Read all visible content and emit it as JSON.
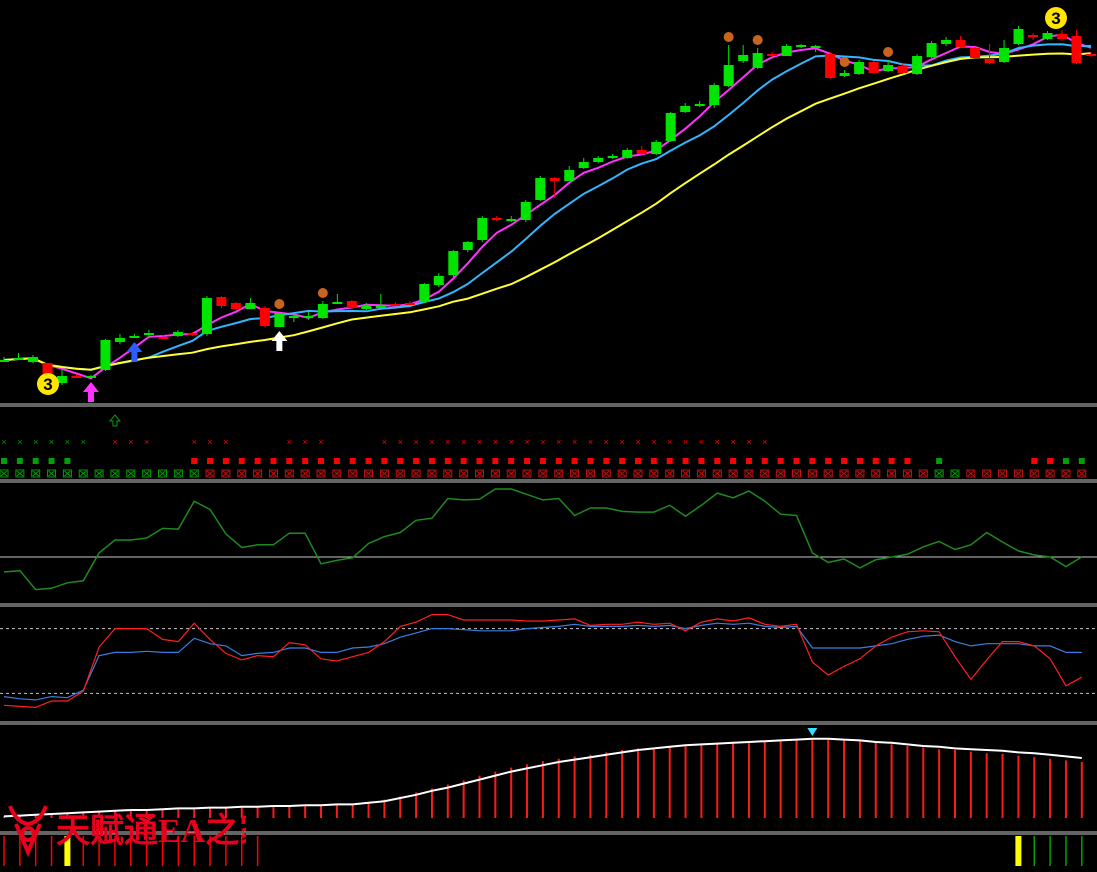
{
  "colors": {
    "background": "#000000",
    "separator": "#c8c8c8",
    "bull": "#00e400",
    "bear": "#ff0000",
    "ma_fast": "#ff33ff",
    "ma_mid": "#33b5ff",
    "ma_slow": "#ffff33",
    "osc1": "#1f8a1f",
    "osc2_a": "#ff2020",
    "osc2_b": "#3a7fe0",
    "hist": "#ff1a1a",
    "hist_line": "#ffffff",
    "signal_yellow": "#ffff00",
    "signal_green": "#00a000"
  },
  "watermark": {
    "text": "天赋通EA之家",
    "icon": "bull-head-icon"
  },
  "badges": [
    {
      "label": "3",
      "at": 3
    },
    {
      "label": "3",
      "at": 65
    }
  ],
  "chart_data": [
    {
      "type": "candlestick",
      "panel": "main",
      "title": "",
      "candles": [
        [
          362,
          360,
          357,
          362
        ],
        [
          359,
          358,
          353,
          360
        ],
        [
          362,
          357,
          355,
          363
        ],
        [
          363,
          384,
          364,
          384
        ],
        [
          383,
          376,
          370,
          385
        ],
        [
          376,
          377,
          374,
          378
        ],
        [
          377,
          376,
          375,
          378
        ],
        [
          370,
          340,
          339,
          371
        ],
        [
          342,
          338,
          334,
          344
        ],
        [
          337,
          336,
          334,
          338
        ],
        [
          335,
          333,
          330,
          337
        ],
        [
          337,
          337,
          335,
          338
        ],
        [
          336,
          332,
          330,
          337
        ],
        [
          333,
          334,
          332,
          336
        ],
        [
          334,
          298,
          296,
          336
        ],
        [
          297,
          306,
          296,
          308
        ],
        [
          303,
          309,
          302,
          310
        ],
        [
          309,
          303,
          298,
          309
        ],
        [
          308,
          326,
          306,
          327
        ],
        [
          327,
          313,
          312,
          327
        ],
        [
          318,
          316,
          314,
          322
        ],
        [
          317,
          316,
          312,
          320
        ],
        [
          318,
          304,
          301,
          319
        ],
        [
          303,
          302,
          294,
          304
        ],
        [
          301,
          308,
          300,
          309
        ],
        [
          309,
          305,
          303,
          310
        ],
        [
          307,
          306,
          294,
          307
        ],
        [
          304,
          304,
          302,
          306
        ],
        [
          303,
          303,
          301,
          305
        ],
        [
          302,
          284,
          283,
          303
        ],
        [
          285,
          276,
          273,
          287
        ],
        [
          275,
          251,
          250,
          277
        ],
        [
          250,
          242,
          241,
          252
        ],
        [
          240,
          218,
          216,
          242
        ],
        [
          218,
          220,
          216,
          221
        ],
        [
          221,
          219,
          216,
          222
        ],
        [
          220,
          202,
          200,
          222
        ],
        [
          200,
          178,
          176,
          201
        ],
        [
          178,
          181,
          177,
          198
        ],
        [
          181,
          170,
          166,
          181
        ],
        [
          168,
          162,
          158,
          169
        ],
        [
          162,
          158,
          156,
          163
        ],
        [
          158,
          156,
          154,
          159
        ],
        [
          158,
          150,
          148,
          159
        ],
        [
          150,
          154,
          146,
          155
        ],
        [
          154,
          142,
          140,
          155
        ],
        [
          141,
          113,
          112,
          142
        ],
        [
          112,
          106,
          103,
          113
        ],
        [
          106,
          104,
          101,
          107
        ],
        [
          105,
          85,
          83,
          108
        ],
        [
          86,
          65,
          45,
          87
        ],
        [
          61,
          55,
          45,
          63
        ],
        [
          68,
          53,
          48,
          69
        ],
        [
          54,
          56,
          52,
          57
        ],
        [
          56,
          46,
          44,
          56
        ],
        [
          47,
          45,
          44,
          48
        ],
        [
          48,
          46,
          45,
          52
        ],
        [
          54,
          78,
          52,
          79
        ],
        [
          76,
          73,
          70,
          77
        ],
        [
          74,
          62,
          60,
          75
        ],
        [
          62,
          73,
          61,
          74
        ],
        [
          71,
          65,
          60,
          72
        ],
        [
          66,
          73,
          64,
          74
        ],
        [
          74,
          56,
          54,
          75
        ],
        [
          57,
          43,
          41,
          58
        ],
        [
          44,
          40,
          37,
          46
        ],
        [
          40,
          47,
          36,
          48
        ],
        [
          48,
          58,
          47,
          59
        ],
        [
          59,
          63,
          44,
          64
        ],
        [
          62,
          48,
          40,
          63
        ],
        [
          44,
          29,
          26,
          45
        ],
        [
          35,
          37,
          33,
          40
        ],
        [
          39,
          33,
          31,
          40
        ],
        [
          34,
          39,
          30,
          41
        ],
        [
          36,
          63,
          30,
          64
        ],
        [
          54,
          56,
          52,
          57
        ]
      ],
      "signals": [
        {
          "type": "up-arrow",
          "color": "magenta",
          "at": 6
        },
        {
          "type": "up-arrow",
          "color": "blue",
          "at": 9
        },
        {
          "type": "up-arrow",
          "color": "white",
          "at": 19
        },
        {
          "type": "marker",
          "at": 19
        },
        {
          "type": "marker",
          "at": 22
        },
        {
          "type": "marker",
          "at": 50
        },
        {
          "type": "marker",
          "at": 52
        },
        {
          "type": "marker",
          "at": 58
        },
        {
          "type": "marker",
          "at": 61
        }
      ]
    },
    {
      "type": "signal-rows",
      "panel": "signals",
      "title": "",
      "top_arrow_at": 7,
      "row1_green": [
        0,
        1,
        2,
        3,
        4,
        5
      ],
      "row1_red": [
        7,
        8,
        9,
        12,
        13,
        14,
        18,
        19,
        20,
        24,
        25,
        26,
        27,
        28,
        29,
        30,
        31,
        32,
        33,
        34,
        35,
        36,
        37,
        38,
        39,
        40,
        41,
        42,
        43,
        44,
        45,
        46,
        47,
        48
      ],
      "row2_green": [
        0,
        1,
        2,
        3,
        4,
        59,
        67,
        68
      ],
      "row2_red": [
        12,
        13,
        14,
        15,
        16,
        17,
        18,
        19,
        20,
        21,
        22,
        23,
        24,
        25,
        26,
        27,
        28,
        29,
        30,
        31,
        32,
        33,
        34,
        35,
        36,
        37,
        38,
        39,
        40,
        41,
        42,
        43,
        44,
        45,
        46,
        47,
        48,
        49,
        50,
        51,
        52,
        53,
        54,
        55,
        56,
        57,
        65,
        66
      ],
      "row3_green_until": 12
    },
    {
      "type": "line",
      "panel": "osc1",
      "title": "",
      "ylim": [
        -1,
        1
      ],
      "level": 0,
      "series": [
        {
          "values": [
            -0.22,
            -0.2,
            -0.48,
            -0.46,
            -0.38,
            -0.35,
            0.06,
            0.25,
            0.25,
            0.28,
            0.42,
            0.41,
            0.82,
            0.7,
            0.34,
            0.14,
            0.18,
            0.18,
            0.35,
            0.35,
            -0.1,
            -0.05,
            -0.01,
            0.2,
            0.3,
            0.36,
            0.54,
            0.57,
            0.86,
            0.84,
            0.85,
            1.0,
            1.0,
            0.92,
            0.84,
            0.86,
            0.61,
            0.72,
            0.72,
            0.67,
            0.66,
            0.66,
            0.76,
            0.6,
            0.76,
            0.94,
            0.87,
            0.97,
            0.82,
            0.63,
            0.61,
            0.06,
            -0.08,
            -0.03,
            -0.16,
            -0.04,
            0.0,
            0.04,
            0.15,
            0.23,
            0.11,
            0.18,
            0.36,
            0.22,
            0.09,
            0.03,
            0.0,
            -0.14,
            0.0
          ]
        }
      ]
    },
    {
      "type": "line",
      "panel": "osc2",
      "title": "",
      "ylim": [
        0,
        100
      ],
      "levels": [
        20,
        80
      ],
      "series": [
        {
          "values": [
            9,
            8,
            7,
            13,
            13,
            22,
            63,
            80,
            80,
            80,
            70,
            68,
            85,
            70,
            57,
            51,
            55,
            54,
            67,
            65,
            52,
            50,
            54,
            58,
            68,
            82,
            86,
            93,
            93,
            88,
            88,
            88,
            88,
            87,
            87,
            88,
            89,
            83,
            84,
            84,
            86,
            84,
            85,
            78,
            86,
            89,
            87,
            90,
            84,
            82,
            84,
            49,
            37,
            45,
            52,
            64,
            72,
            77,
            78,
            77,
            54,
            33,
            51,
            68,
            68,
            64,
            52,
            27,
            35
          ]
        },
        {
          "values": [
            17,
            15,
            14,
            17,
            16,
            23,
            55,
            58,
            58,
            59,
            58,
            58,
            71,
            66,
            64,
            55,
            57,
            58,
            62,
            62,
            58,
            58,
            62,
            63,
            66,
            72,
            76,
            80,
            80,
            79,
            78,
            78,
            78,
            80,
            81,
            82,
            84,
            82,
            82,
            82,
            83,
            82,
            83,
            80,
            83,
            85,
            84,
            85,
            82,
            81,
            82,
            62,
            62,
            62,
            62,
            64,
            66,
            70,
            73,
            74,
            68,
            64,
            66,
            66,
            66,
            64,
            64,
            58,
            58
          ]
        }
      ]
    },
    {
      "type": "bar",
      "panel": "macd",
      "title": "",
      "ylim": [
        0,
        100
      ],
      "bars": [
        2,
        3,
        4,
        5,
        6,
        7,
        8,
        9,
        9,
        10,
        11,
        11,
        12,
        13,
        13,
        14,
        14,
        15,
        15,
        16,
        17,
        17,
        18,
        20,
        23,
        27,
        32,
        37,
        42,
        47,
        53,
        58,
        63,
        67,
        71,
        74,
        77,
        79,
        82,
        85,
        87,
        88,
        90,
        92,
        93,
        94,
        95,
        96,
        97,
        98,
        99,
        100,
        100,
        98,
        96,
        94,
        92,
        90,
        88,
        86,
        85,
        83,
        81,
        80,
        78,
        76,
        74,
        72,
        70
      ],
      "line": [
        2,
        3,
        4,
        5,
        6,
        7,
        8,
        9,
        10,
        10,
        11,
        12,
        12,
        13,
        13,
        14,
        14,
        15,
        15,
        16,
        16,
        17,
        17,
        19,
        21,
        25,
        29,
        34,
        38,
        43,
        48,
        53,
        58,
        62,
        66,
        70,
        73,
        76,
        79,
        82,
        85,
        87,
        89,
        91,
        92,
        93,
        94,
        95,
        96,
        97,
        98,
        99,
        99,
        98,
        97,
        95,
        94,
        92,
        90,
        89,
        87,
        86,
        85,
        84,
        82,
        81,
        79,
        77,
        75
      ],
      "marker_at": 51
    },
    {
      "type": "bar",
      "panel": "bottom",
      "title": "",
      "red_until": 16,
      "yellow_at": [
        4,
        64
      ],
      "green_from": 65
    }
  ]
}
